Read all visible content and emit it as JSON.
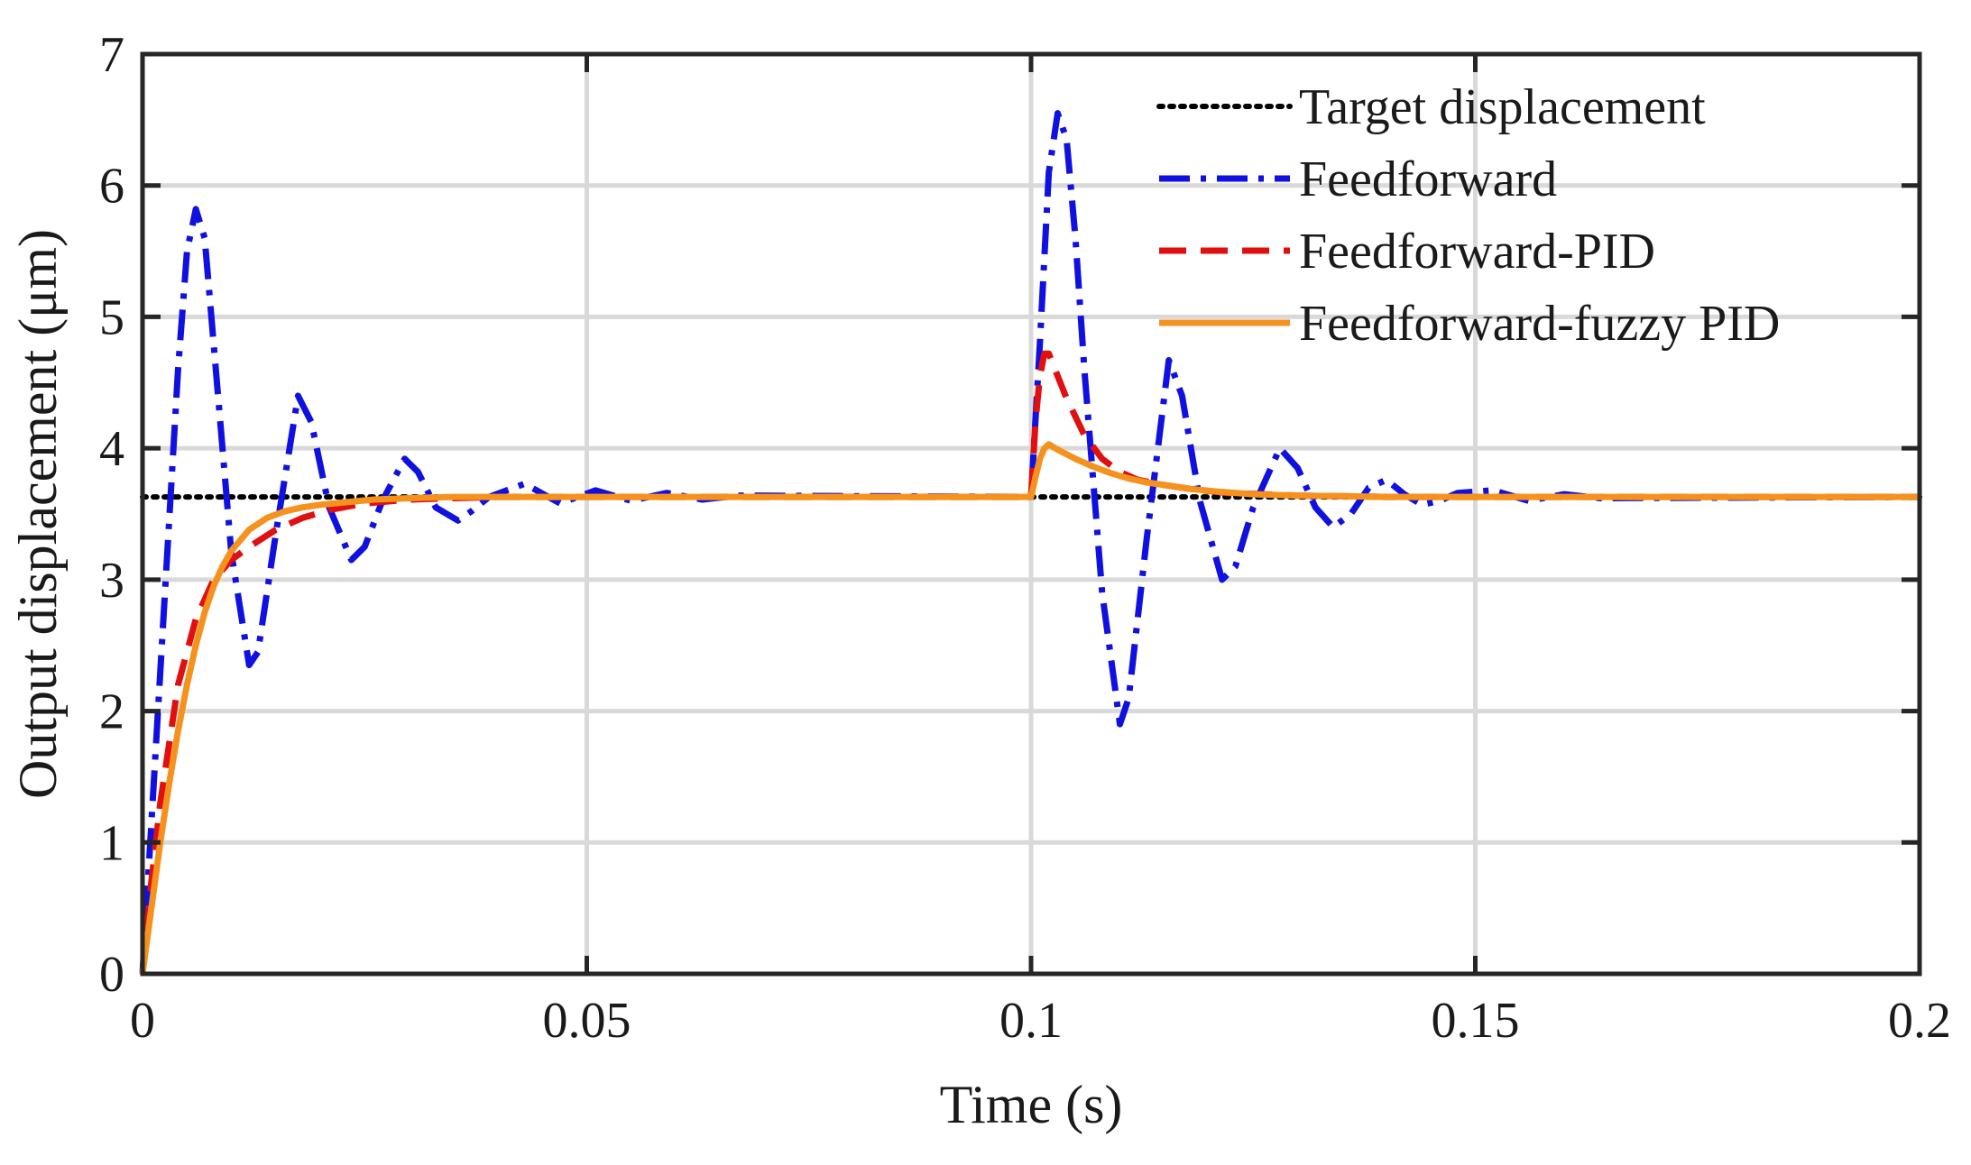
{
  "chart_data": {
    "type": "line",
    "title": "",
    "xlabel": "Time (s)",
    "ylabel": "Output displacement (μm)",
    "xlim": [
      0,
      0.2
    ],
    "ylim": [
      0,
      7
    ],
    "xticks": [
      0,
      0.05,
      0.1,
      0.15,
      0.2
    ],
    "xtick_labels": [
      "0",
      "0.05",
      "0.1",
      "0.15",
      "0.2"
    ],
    "yticks": [
      0,
      1,
      2,
      3,
      4,
      5,
      6,
      7
    ],
    "ytick_labels": [
      "0",
      "1",
      "2",
      "3",
      "4",
      "5",
      "6",
      "7"
    ],
    "grid": true,
    "legend_position": "top-right",
    "series": [
      {
        "name": "Target displacement",
        "color": "#000000",
        "style": "dotted",
        "x": [
          0,
          0.2
        ],
        "y": [
          3.63,
          3.63
        ]
      },
      {
        "name": "Feedforward",
        "color": "#1010e0",
        "style": "dashdot",
        "x": [
          0,
          0.002,
          0.004,
          0.005,
          0.006,
          0.007,
          0.008,
          0.01,
          0.012,
          0.013,
          0.015,
          0.0175,
          0.019,
          0.021,
          0.0235,
          0.025,
          0.027,
          0.0295,
          0.031,
          0.033,
          0.0355,
          0.037,
          0.039,
          0.043,
          0.047,
          0.051,
          0.055,
          0.059,
          0.063,
          0.067,
          0.1,
          0.101,
          0.102,
          0.103,
          0.104,
          0.105,
          0.106,
          0.108,
          0.11,
          0.111,
          0.113,
          0.1155,
          0.117,
          0.119,
          0.1215,
          0.123,
          0.125,
          0.128,
          0.13,
          0.132,
          0.134,
          0.136,
          0.138,
          0.14,
          0.142,
          0.144,
          0.146,
          0.148,
          0.152,
          0.156,
          0.16,
          0.164,
          0.2
        ],
        "y": [
          0,
          2.3,
          4.6,
          5.5,
          5.82,
          5.6,
          4.8,
          3.2,
          2.35,
          2.45,
          3.35,
          4.4,
          4.2,
          3.55,
          3.15,
          3.25,
          3.6,
          3.92,
          3.82,
          3.55,
          3.45,
          3.52,
          3.63,
          3.73,
          3.58,
          3.68,
          3.6,
          3.66,
          3.61,
          3.64,
          3.63,
          4.8,
          6.1,
          6.55,
          6.35,
          5.6,
          4.6,
          2.9,
          1.9,
          2.1,
          3.3,
          4.67,
          4.4,
          3.6,
          3.0,
          3.1,
          3.55,
          4.0,
          3.85,
          3.55,
          3.4,
          3.5,
          3.7,
          3.76,
          3.65,
          3.57,
          3.6,
          3.66,
          3.68,
          3.6,
          3.65,
          3.62,
          3.63
        ]
      },
      {
        "name": "Feedforward-PID",
        "color": "#e01010",
        "style": "dashed",
        "x": [
          0,
          0.001,
          0.002,
          0.004,
          0.006,
          0.008,
          0.01,
          0.012,
          0.015,
          0.018,
          0.021,
          0.025,
          0.03,
          0.035,
          0.04,
          0.05,
          0.1,
          0.1005,
          0.101,
          0.1015,
          0.102,
          0.103,
          0.104,
          0.106,
          0.108,
          0.11,
          0.112,
          0.115,
          0.118,
          0.122,
          0.126,
          0.13,
          0.135,
          0.14,
          0.2
        ],
        "y": [
          0,
          0.7,
          1.3,
          2.2,
          2.7,
          3.0,
          3.15,
          3.25,
          3.38,
          3.47,
          3.53,
          3.58,
          3.61,
          3.62,
          3.63,
          3.63,
          3.63,
          4.2,
          4.55,
          4.72,
          4.72,
          4.55,
          4.38,
          4.1,
          3.92,
          3.82,
          3.76,
          3.72,
          3.69,
          3.66,
          3.65,
          3.64,
          3.635,
          3.63,
          3.63
        ]
      },
      {
        "name": "Feedforward-fuzzy PID",
        "color": "#f5921e",
        "style": "solid",
        "x": [
          0,
          0.001,
          0.002,
          0.003,
          0.004,
          0.005,
          0.006,
          0.007,
          0.008,
          0.009,
          0.01,
          0.012,
          0.014,
          0.016,
          0.018,
          0.02,
          0.023,
          0.026,
          0.03,
          0.035,
          0.04,
          0.1,
          0.1005,
          0.101,
          0.1015,
          0.102,
          0.103,
          0.105,
          0.107,
          0.109,
          0.111,
          0.113,
          0.115,
          0.118,
          0.121,
          0.125,
          0.13,
          0.135,
          0.14,
          0.2
        ],
        "y": [
          0,
          0.5,
          1.0,
          1.45,
          1.85,
          2.2,
          2.5,
          2.75,
          2.95,
          3.1,
          3.22,
          3.38,
          3.47,
          3.52,
          3.55,
          3.57,
          3.59,
          3.61,
          3.62,
          3.63,
          3.63,
          3.63,
          3.78,
          3.92,
          4.0,
          4.03,
          3.99,
          3.92,
          3.86,
          3.81,
          3.77,
          3.74,
          3.72,
          3.69,
          3.67,
          3.65,
          3.64,
          3.635,
          3.63,
          3.63
        ]
      }
    ]
  }
}
